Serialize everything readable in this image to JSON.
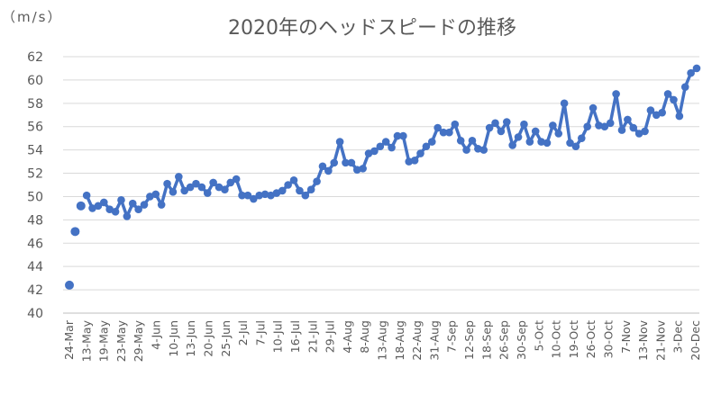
{
  "chart_data": {
    "type": "line",
    "title": "2020年のヘッドスピードの推移",
    "unit_label": "（m/s）",
    "ylim": [
      40,
      62
    ],
    "yticks": [
      40,
      42,
      44,
      46,
      48,
      50,
      52,
      54,
      56,
      58,
      60,
      62
    ],
    "grid": true,
    "legend": "none",
    "color": "#4472c4",
    "xtick_labels": [
      "24-Mar",
      "13-May",
      "19-May",
      "23-May",
      "29-May",
      "4-Jun",
      "10-Jun",
      "13-Jun",
      "20-Jun",
      "25-Jun",
      "2-Jul",
      "7-Jul",
      "10-Jul",
      "16-Jul",
      "21-Jul",
      "29-Jul",
      "4-Aug",
      "8-Aug",
      "13-Aug",
      "18-Aug",
      "22-Aug",
      "31-Aug",
      "7-Sep",
      "12-Sep",
      "18-Sep",
      "26-Sep",
      "30-Sep",
      "5-Oct",
      "10-Oct",
      "19-Oct",
      "26-Oct",
      "30-Oct",
      "7-Nov",
      "13-Nov",
      "21-Nov",
      "3-Dec",
      "20-Dec"
    ],
    "series": [
      {
        "isolated_points": [
          42.4,
          47.0,
          49.2
        ],
        "values": [
          50.1,
          49.0,
          49.2,
          49.5,
          48.9,
          48.7,
          49.7,
          48.3,
          49.4,
          48.9,
          49.3,
          50.0,
          50.2,
          49.3,
          51.1,
          50.4,
          51.7,
          50.5,
          50.8,
          51.1,
          50.8,
          50.3,
          51.2,
          50.8,
          50.6,
          51.2,
          51.5,
          50.1,
          50.1,
          49.8,
          50.1,
          50.2,
          50.1,
          50.3,
          50.5,
          51.0,
          51.4,
          50.5,
          50.1,
          50.6,
          51.3,
          52.6,
          52.2,
          52.9,
          54.7,
          52.9,
          52.9,
          52.3,
          52.4,
          53.7,
          53.9,
          54.3,
          54.7,
          54.2,
          55.2,
          55.2,
          53.0,
          53.1,
          53.7,
          54.3,
          54.7,
          55.9,
          55.5,
          55.5,
          56.2,
          54.8,
          54.0,
          54.8,
          54.1,
          54.0,
          55.9,
          56.3,
          55.6,
          56.4,
          54.4,
          55.1,
          56.2,
          54.7,
          55.6,
          54.7,
          54.6,
          56.1,
          55.4,
          58.0,
          54.6,
          54.3,
          55.0,
          56.0,
          57.6,
          56.1,
          56.0,
          56.3,
          58.8,
          55.7,
          56.6,
          55.9,
          55.4,
          55.6,
          57.4,
          57.0,
          57.2,
          58.8,
          58.3,
          56.9,
          59.4,
          60.6,
          61.0
        ]
      }
    ]
  }
}
